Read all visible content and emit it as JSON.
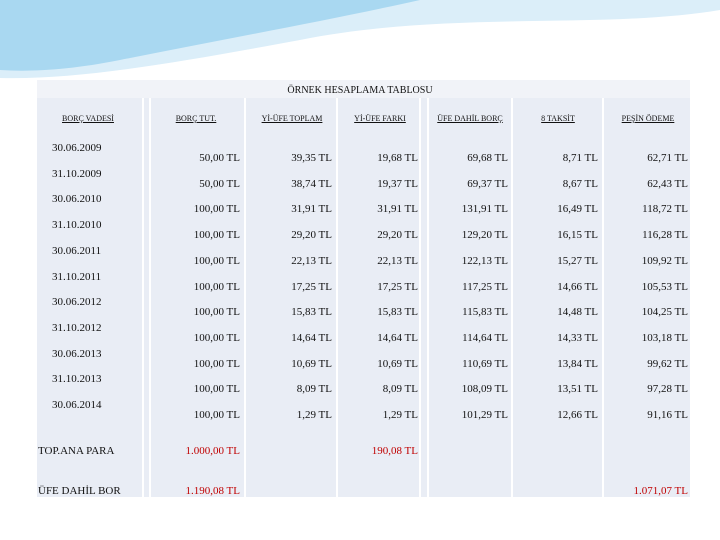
{
  "title": "ÖRNEK HESAPLAMA TABLOSU",
  "table": {
    "headers": [
      "BORÇ VADESİ",
      "BORÇ TUT.",
      "Yİ-ÜFE TOPLAM",
      "Yİ-ÜFE FARKI",
      "ÜFE DAHİL BORÇ",
      "8 TAKSİT",
      "PEŞİN ÖDEME"
    ],
    "rows": [
      [
        "30.06.2009",
        "50,00 TL",
        "39,35 TL",
        "19,68 TL",
        "69,68 TL",
        "8,71 TL",
        "62,71 TL"
      ],
      [
        "31.10.2009",
        "50,00 TL",
        "38,74 TL",
        "19,37 TL",
        "69,37 TL",
        "8,67 TL",
        "62,43 TL"
      ],
      [
        "30.06.2010",
        "100,00 TL",
        "31,91 TL",
        "31,91 TL",
        "131,91 TL",
        "16,49 TL",
        "118,72 TL"
      ],
      [
        "31.10.2010",
        "100,00 TL",
        "29,20 TL",
        "29,20 TL",
        "129,20 TL",
        "16,15 TL",
        "116,28 TL"
      ],
      [
        "30.06.2011",
        "100,00 TL",
        "22,13 TL",
        "22,13 TL",
        "122,13 TL",
        "15,27 TL",
        "109,92 TL"
      ],
      [
        "31.10.2011",
        "100,00 TL",
        "17,25 TL",
        "17,25 TL",
        "117,25 TL",
        "14,66 TL",
        "105,53 TL"
      ],
      [
        "30.06.2012",
        "100,00 TL",
        "15,83 TL",
        "15,83 TL",
        "115,83 TL",
        "14,48 TL",
        "104,25 TL"
      ],
      [
        "31.10.2012",
        "100,00 TL",
        "14,64 TL",
        "14,64 TL",
        "114,64 TL",
        "14,33 TL",
        "103,18 TL"
      ],
      [
        "30.06.2013",
        "100,00 TL",
        "10,69 TL",
        "10,69 TL",
        "110,69 TL",
        "13,84 TL",
        "99,62 TL"
      ],
      [
        "31.10.2013",
        "100,00 TL",
        "8,09 TL",
        "8,09 TL",
        "108,09 TL",
        "13,51 TL",
        "97,28 TL"
      ],
      [
        "30.06.2014",
        "100,00 TL",
        "1,29 TL",
        "1,29 TL",
        "101,29 TL",
        "12,66 TL",
        "91,16 TL"
      ]
    ],
    "footer": [
      {
        "label": "TOP.ANA PARA",
        "values": [
          "1.000,00 TL",
          "190,08 TL"
        ]
      },
      {
        "label": "ÜFE DAHİL BOR",
        "values": [
          "1.190,08 TL",
          "1.071,07 TL"
        ]
      }
    ]
  }
}
